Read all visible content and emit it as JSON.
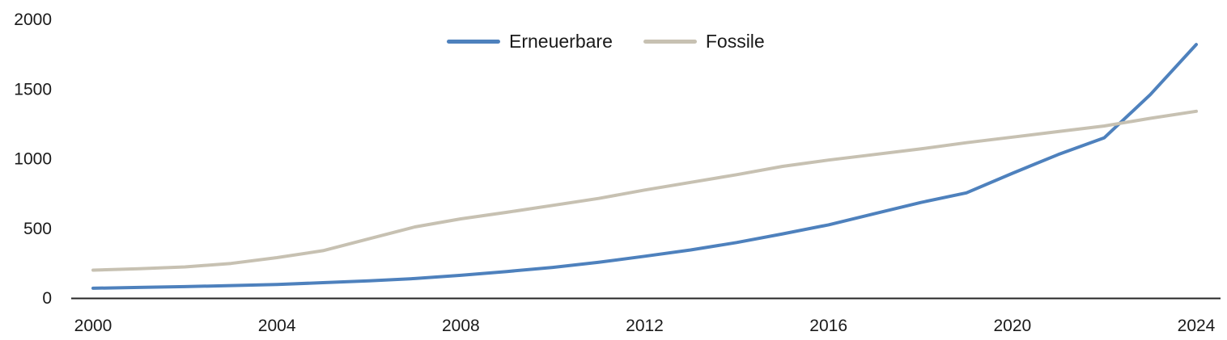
{
  "chart_data": {
    "type": "line",
    "title": "",
    "xlabel": "",
    "ylabel": "",
    "x": [
      2000,
      2001,
      2002,
      2003,
      2004,
      2005,
      2006,
      2007,
      2008,
      2009,
      2010,
      2011,
      2012,
      2013,
      2014,
      2015,
      2016,
      2017,
      2018,
      2019,
      2020,
      2021,
      2022,
      2023,
      2024
    ],
    "series": [
      {
        "name": "Erneuerbare",
        "color": "#4E81BD",
        "values": [
          70,
          76,
          82,
          89,
          97,
          110,
          123,
          140,
          163,
          190,
          220,
          256,
          300,
          345,
          398,
          460,
          525,
          605,
          685,
          755,
          895,
          1030,
          1150,
          1460,
          1820
        ]
      },
      {
        "name": "Fossile",
        "color": "#C7C1B2",
        "values": [
          200,
          210,
          223,
          248,
          290,
          340,
          425,
          510,
          568,
          615,
          665,
          715,
          775,
          830,
          885,
          945,
          990,
          1030,
          1070,
          1115,
          1155,
          1195,
          1235,
          1290,
          1340
        ]
      }
    ],
    "x_ticks": [
      2000,
      2004,
      2008,
      2012,
      2016,
      2020,
      2024
    ],
    "y_ticks": [
      0,
      500,
      1000,
      1500,
      2000
    ],
    "xlim": [
      2000,
      2024
    ],
    "ylim": [
      0,
      2000
    ],
    "grid": false,
    "legend_position": "top-center",
    "axis_color": "#262626",
    "text_color": "#1a1a1a",
    "background_color": "#ffffff"
  }
}
